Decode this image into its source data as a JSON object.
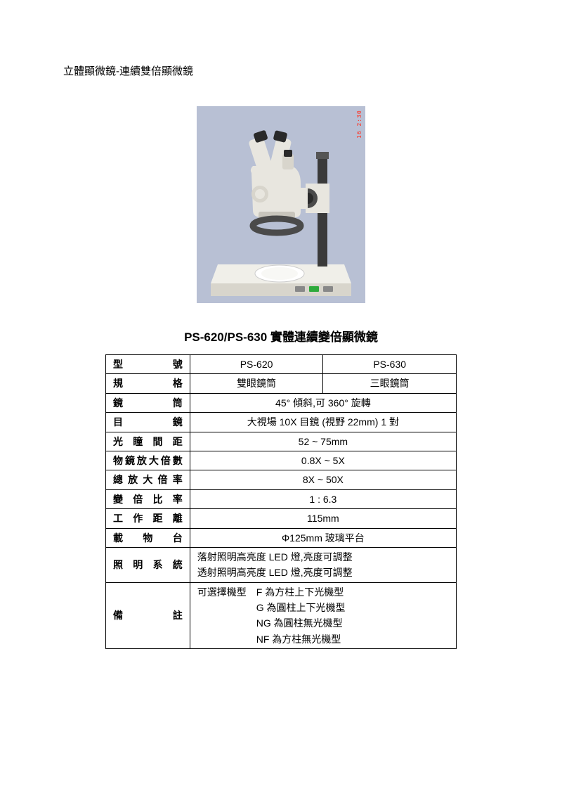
{
  "breadcrumb": "立體顯微鏡-連續雙倍顯微鏡",
  "title": "PS-620/PS-630 實體連續變倍顯微鏡",
  "image": {
    "bg": "#b8c0d4",
    "body": "#e8e6df",
    "body_dark": "#c8c5bc",
    "base_top": "#f0efe9",
    "base_side": "#d8d5cc",
    "lens": "#2a2a2a",
    "ring": "#4a4a4a",
    "column": "#3a3a3a",
    "ts_color": "#ff3020",
    "ts_text": "16  2:30 AM",
    "switch": "#2eaa3c"
  },
  "table": {
    "rows": [
      {
        "label": "型號",
        "cells": [
          "PS-620",
          "PS-630"
        ],
        "type": "split"
      },
      {
        "label": "規格",
        "cells": [
          "雙眼鏡筒",
          "三眼鏡筒"
        ],
        "type": "split"
      },
      {
        "label": "鏡筒",
        "value": "45° 傾斜,可 360° 旋轉",
        "type": "single"
      },
      {
        "label": "目鏡",
        "value": "大視場 10X 目鏡 (視野 22mm) 1 對",
        "type": "single"
      },
      {
        "label": "光瞳間距",
        "value": "52 ~ 75mm",
        "type": "single"
      },
      {
        "label": "物鏡放大倍數",
        "value": "0.8X ~ 5X",
        "type": "single"
      },
      {
        "label": "總放大倍率",
        "value": "8X ~ 50X",
        "type": "single"
      },
      {
        "label": "變倍比率",
        "value": "1 : 6.3",
        "type": "single"
      },
      {
        "label": "工作距離",
        "value": "115mm",
        "type": "single"
      },
      {
        "label": "載物台",
        "value": "Φ125mm 玻璃平台",
        "type": "single"
      },
      {
        "label": "照明系統",
        "value": "落射照明高亮度 LED 燈,亮度可調整\n透射照明高亮度 LED 燈,亮度可調整",
        "type": "multi"
      },
      {
        "label": "備註",
        "value": "可選擇機型　F 為方柱上下光機型\n　　　　　　G 為圓柱上下光機型\n　　　　　　NG 為圓柱無光機型\n　　　　　　NF 為方柱無光機型",
        "type": "multi"
      }
    ]
  }
}
